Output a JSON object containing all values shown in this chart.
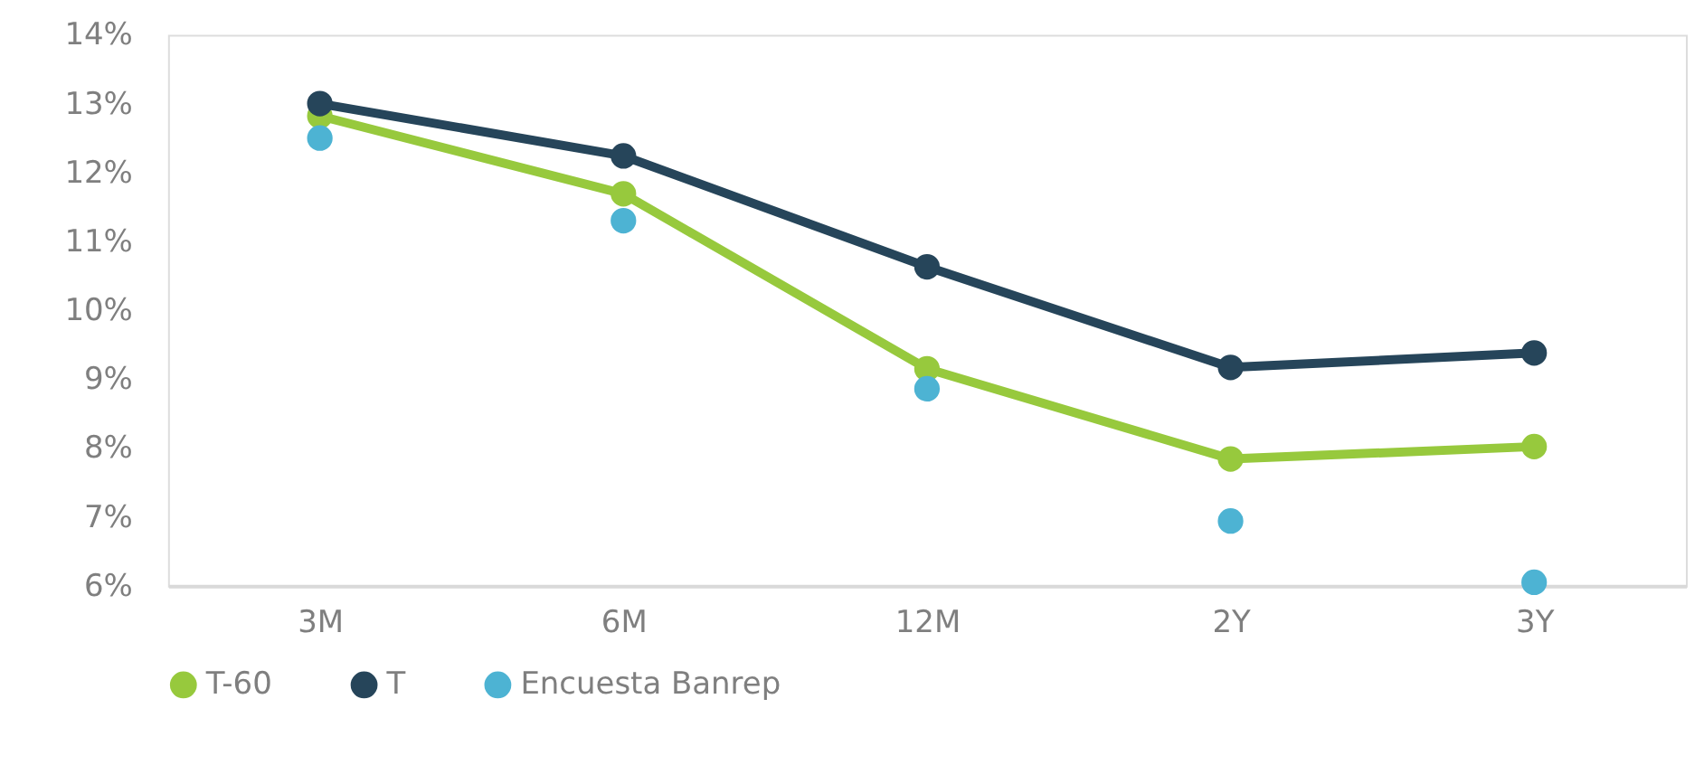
{
  "chart_data": {
    "type": "line",
    "categories": [
      "3M",
      "6M",
      "12M",
      "2Y",
      "3Y"
    ],
    "series": [
      {
        "name": "T-60",
        "color": "#97c93d",
        "type": "line",
        "marker": "circle",
        "values": [
          12.82,
          11.69,
          9.15,
          7.84,
          8.02
        ]
      },
      {
        "name": "T",
        "color": "#26455a",
        "type": "line",
        "marker": "circle",
        "values": [
          13.0,
          12.24,
          10.63,
          9.17,
          9.38
        ]
      },
      {
        "name": "Encuesta Banrep",
        "color": "#4db3d3",
        "type": "scatter",
        "values": [
          12.5,
          11.3,
          8.86,
          6.94,
          6.05
        ]
      }
    ],
    "ylim": [
      6,
      14
    ],
    "yticks": [
      {
        "value": 6,
        "label": "6%"
      },
      {
        "value": 7,
        "label": "7%"
      },
      {
        "value": 8,
        "label": "8%"
      },
      {
        "value": 9,
        "label": "9%"
      },
      {
        "value": 10,
        "label": "10%"
      },
      {
        "value": 11,
        "label": "11%"
      },
      {
        "value": 12,
        "label": "12%"
      },
      {
        "value": 13,
        "label": "13%"
      },
      {
        "value": 14,
        "label": "14%"
      }
    ],
    "grid": false,
    "legend": "bottom"
  }
}
